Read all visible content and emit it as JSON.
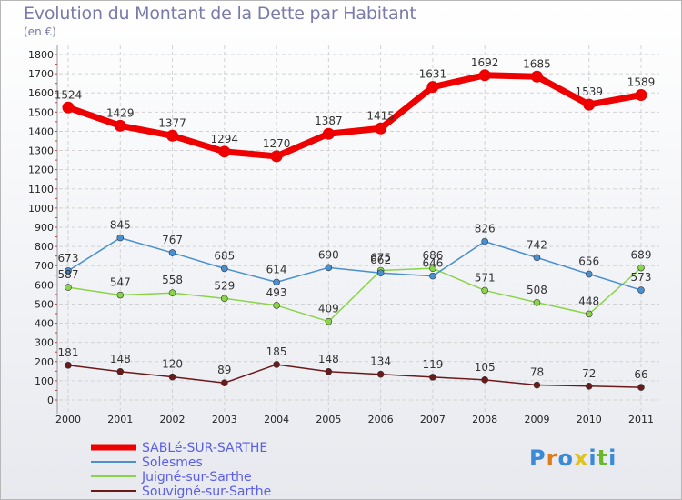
{
  "header": {
    "title": "Evolution du Montant de la Dette par Habitant",
    "subtitle": "(en €)"
  },
  "logo": {
    "text": "Proxiti"
  },
  "chart_data": {
    "type": "line",
    "title": "Evolution du Montant de la Dette par Habitant",
    "subtitle": "(en €)",
    "xlabel": "",
    "ylabel": "",
    "x": [
      "2000",
      "2001",
      "2002",
      "2003",
      "2004",
      "2005",
      "2006",
      "2007",
      "2008",
      "2009",
      "2010",
      "2011"
    ],
    "ylim": [
      0,
      1800
    ],
    "yticks": [
      0,
      100,
      200,
      300,
      400,
      500,
      600,
      700,
      800,
      900,
      1000,
      1100,
      1200,
      1300,
      1400,
      1500,
      1600,
      1700,
      1800
    ],
    "grid": true,
    "legend_position": "bottom-left",
    "series": [
      {
        "name": "SABLé-SUR-SARTHE",
        "color": "#ee0000",
        "values": [
          1524,
          1429,
          1377,
          1294,
          1270,
          1387,
          1415,
          1631,
          1692,
          1685,
          1539,
          1589
        ]
      },
      {
        "name": "Solesmes",
        "color": "#4a8fd0",
        "values": [
          673,
          845,
          767,
          685,
          614,
          690,
          662,
          646,
          826,
          742,
          656,
          573
        ]
      },
      {
        "name": "Juigné-sur-Sarthe",
        "color": "#8ad44a",
        "values": [
          587,
          547,
          558,
          529,
          493,
          409,
          675,
          686,
          571,
          508,
          448,
          689
        ]
      },
      {
        "name": "Souvigné-sur-Sarthe",
        "color": "#6b1a1a",
        "values": [
          181,
          148,
          120,
          89,
          185,
          148,
          134,
          119,
          105,
          78,
          72,
          66
        ]
      }
    ]
  }
}
